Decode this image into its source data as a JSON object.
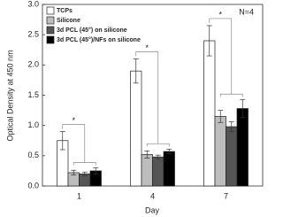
{
  "chart_data": {
    "type": "bar",
    "y_label": "Optical Density at 450 nm",
    "x_label": "Day",
    "annotation": "N=4",
    "significance": [
      "*",
      "*",
      "*"
    ],
    "categories": [
      "1",
      "4",
      "7"
    ],
    "series": [
      {
        "name": "TCPs",
        "color": "#ffffff",
        "values": [
          0.75,
          1.9,
          2.4
        ],
        "errors": [
          0.15,
          0.2,
          0.25
        ]
      },
      {
        "name": "Silicone",
        "color": "#bdbdbd",
        "values": [
          0.22,
          0.52,
          1.15
        ],
        "errors": [
          0.04,
          0.06,
          0.1
        ]
      },
      {
        "name": "3d PCL (45°) on silicone",
        "color": "#555555",
        "values": [
          0.2,
          0.48,
          0.98
        ],
        "errors": [
          0.03,
          0.03,
          0.08
        ]
      },
      {
        "name": "3d PCL (45°)/NFs on silicone",
        "color": "#000000",
        "values": [
          0.25,
          0.57,
          1.28
        ],
        "errors": [
          0.05,
          0.04,
          0.15
        ]
      }
    ],
    "ylim": [
      0,
      3
    ],
    "yticks": [
      {
        "value": 0,
        "label": "0.0"
      },
      {
        "value": 0.5,
        "label": "0.5"
      },
      {
        "value": 1,
        "label": "1.0"
      },
      {
        "value": 1.5,
        "label": "1.5"
      },
      {
        "value": 2,
        "label": "2.0"
      },
      {
        "value": 2.5,
        "label": "2.5"
      },
      {
        "value": 3,
        "label": "3.0"
      }
    ],
    "legend": "upper-left"
  }
}
